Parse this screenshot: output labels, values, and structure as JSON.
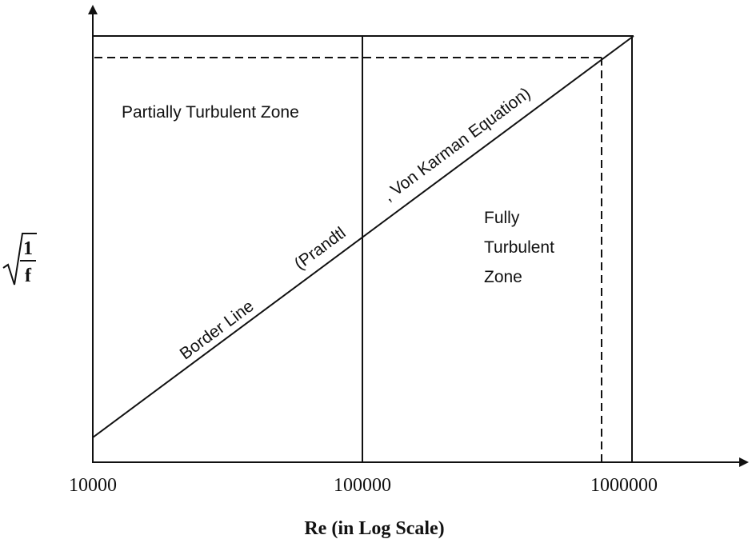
{
  "axes": {
    "x_label": "Re (in Log Scale)",
    "x_ticks": [
      "10000",
      "100000",
      "1000000"
    ],
    "y_label": {
      "numerator": "1",
      "denominator": "f"
    }
  },
  "zones": {
    "partial": "Partially Turbulent Zone",
    "fully": [
      "Fully",
      "Turbulent",
      "Zone"
    ]
  },
  "border_line": {
    "labels": [
      "Border Line",
      "(Prandtl",
      ", Von Karman Equation)"
    ]
  }
}
